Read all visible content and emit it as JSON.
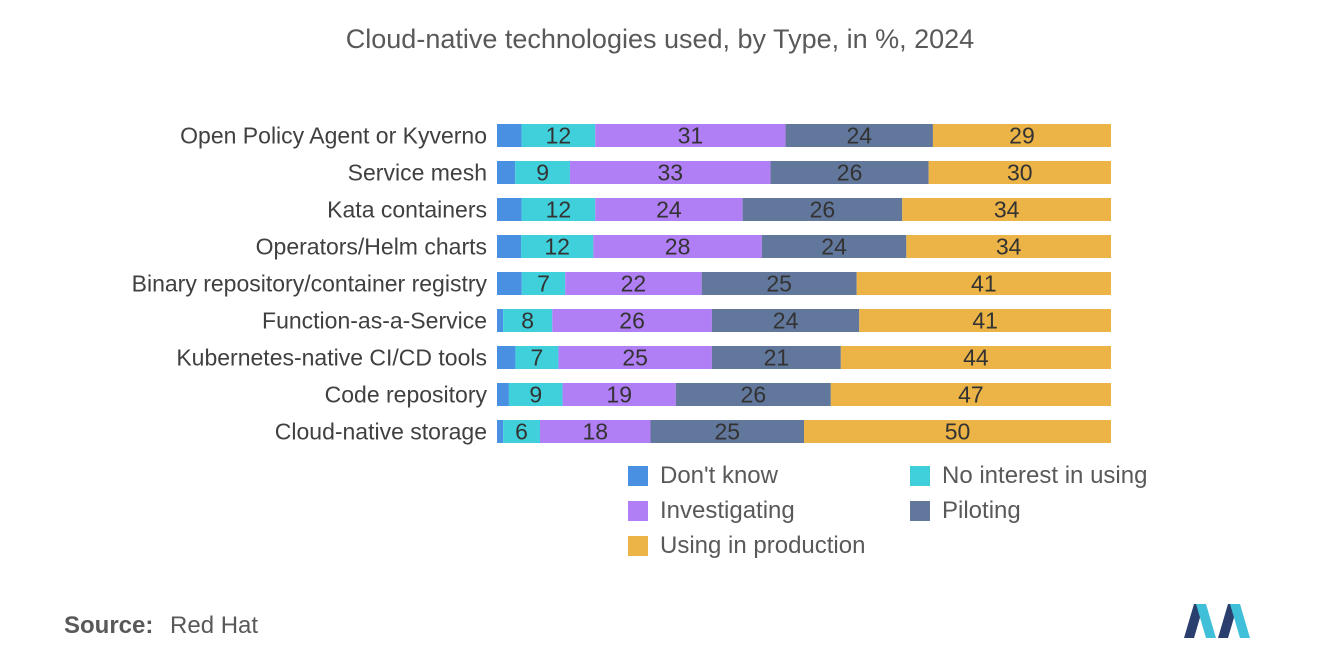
{
  "chart_data": {
    "type": "bar",
    "orientation": "horizontal",
    "stacked": true,
    "title": "Cloud-native technologies used, by Type, in %, 2024",
    "categories": [
      "Open Policy Agent or Kyverno",
      "Service mesh",
      "Kata containers",
      "Operators/Helm charts",
      "Binary repository/container registry",
      "Function-as-a-Service",
      "Kubernetes-native CI/CD tools",
      "Code repository",
      "Cloud-native storage"
    ],
    "series": [
      {
        "name": "Don't know",
        "color": "#4a90e2",
        "values": [
          4,
          3,
          4,
          4,
          4,
          1,
          3,
          2,
          1
        ]
      },
      {
        "name": "No interest in using",
        "color": "#3fd0dc",
        "values": [
          12,
          9,
          12,
          12,
          7,
          8,
          7,
          9,
          6
        ]
      },
      {
        "name": "Investigating",
        "color": "#b07ef5",
        "values": [
          31,
          33,
          24,
          28,
          22,
          26,
          25,
          19,
          18
        ]
      },
      {
        "name": "Piloting",
        "color": "#62779c",
        "values": [
          24,
          26,
          26,
          24,
          25,
          24,
          21,
          26,
          25
        ]
      },
      {
        "name": "Using in production",
        "color": "#ecb447",
        "values": [
          29,
          30,
          34,
          34,
          41,
          41,
          44,
          47,
          50
        ]
      }
    ],
    "xlim": [
      0,
      100
    ],
    "legend_position": "bottom-right",
    "xlabel": "",
    "ylabel": ""
  },
  "source": {
    "label": "Source:",
    "value": "Red Hat"
  },
  "logo": {
    "name": "mordor-intelligence-logo"
  }
}
